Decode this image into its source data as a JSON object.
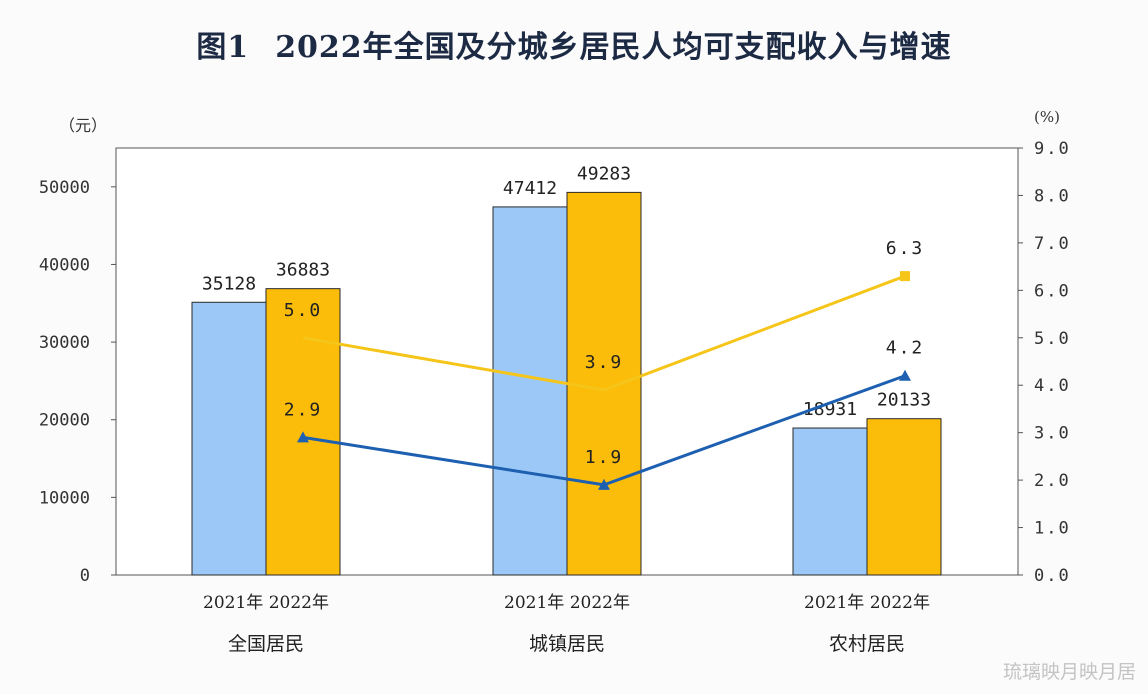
{
  "title": {
    "fig_label": "图1",
    "text": "2022年全国及分城乡居民人均可支配收入与增速"
  },
  "watermark": "琉璃映月映月居",
  "colors": {
    "bar_2021": "#9cc8f7",
    "bar_2022": "#fbbc0a",
    "line_blue": "#1d5fb0",
    "line_yellow": "#f5c51a",
    "axis": "#333333"
  },
  "chart_data": {
    "type": "bar",
    "categories": [
      "全国居民",
      "城镇居民",
      "农村居民"
    ],
    "bar_year_labels": [
      "2021年",
      "2022年"
    ],
    "y_left": {
      "unit": "（元）",
      "ylim": [
        0,
        55000
      ],
      "ticks": [
        0,
        10000,
        20000,
        30000,
        40000,
        50000
      ]
    },
    "y_right": {
      "unit": "(%)",
      "ylim": [
        0,
        9
      ],
      "ticks": [
        "0.0",
        "1.0",
        "2.0",
        "3.0",
        "4.0",
        "5.0",
        "6.0",
        "7.0",
        "8.0",
        "9.0"
      ]
    },
    "series": [
      {
        "name": "2021年",
        "values": [
          35128,
          47412,
          18931
        ]
      },
      {
        "name": "2022年",
        "values": [
          36883,
          49283,
          20133
        ]
      }
    ],
    "lines": [
      {
        "values": [
          5.0,
          3.9,
          6.3
        ],
        "labels": [
          "5.0",
          "3.9",
          "6.3"
        ],
        "marker": "square"
      },
      {
        "values": [
          2.9,
          1.9,
          4.2
        ],
        "labels": [
          "2.9",
          "1.9",
          "4.2"
        ],
        "marker": "triangle"
      }
    ],
    "grid": false
  }
}
